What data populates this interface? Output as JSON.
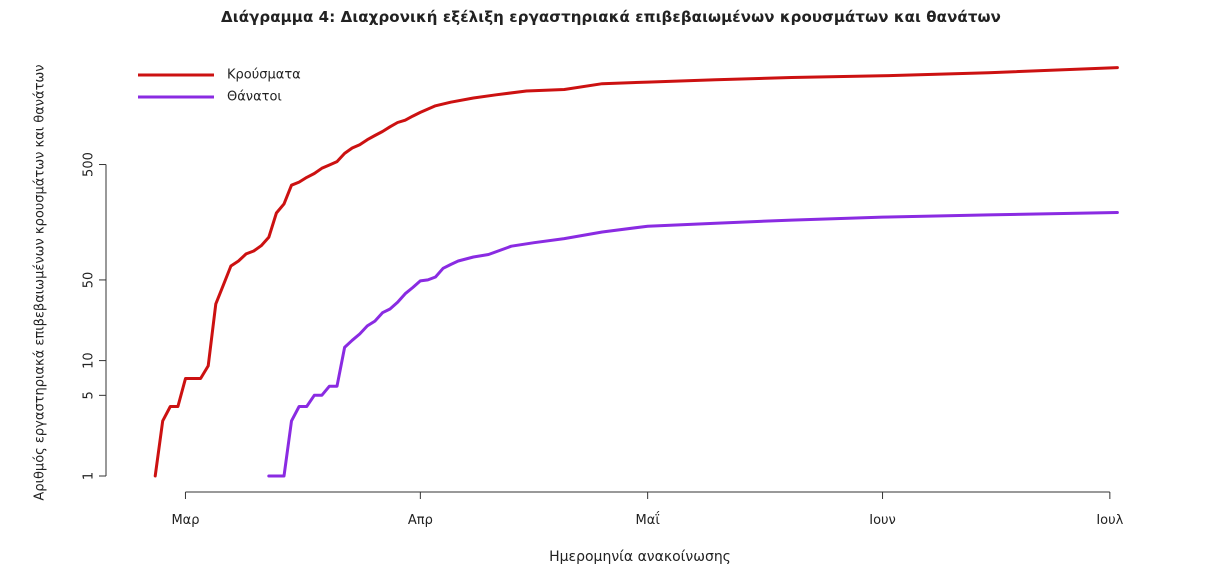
{
  "chart_data": {
    "type": "line",
    "title": "Διάγραμμα 4: Διαχρονική εξέλιξη εργαστηριακά επιβεβαιωμένων κρουσμάτων και θανάτων",
    "xlabel": "Ημερομηνία ανακοίνωσης",
    "ylabel": "Αριθμός εργαστηριακά επιβεβαιωμένων κρουσμάτων και θανάτων",
    "y_scale": "log",
    "yticks": [
      1,
      5,
      10,
      50,
      500
    ],
    "ytick_labels": [
      "1",
      "5",
      "10",
      "50",
      "500"
    ],
    "ylim": [
      1,
      3500
    ],
    "xlim": [
      "2020-02-24",
      "2020-07-03"
    ],
    "xticks": [
      "2020-03-01",
      "2020-04-01",
      "2020-05-01",
      "2020-06-01",
      "2020-07-01"
    ],
    "xtick_labels": [
      "Μαρ",
      "Απρ",
      "Μαΐ",
      "Ιουν",
      "Ιουλ"
    ],
    "legend_position": "top-left",
    "grid": false,
    "series": [
      {
        "name": "Κρούσματα",
        "color": "#cc1111",
        "points": [
          [
            "2020-02-26",
            1
          ],
          [
            "2020-02-27",
            3
          ],
          [
            "2020-02-28",
            4
          ],
          [
            "2020-02-29",
            4
          ],
          [
            "2020-03-01",
            7
          ],
          [
            "2020-03-02",
            7
          ],
          [
            "2020-03-03",
            7
          ],
          [
            "2020-03-04",
            9
          ],
          [
            "2020-03-05",
            31
          ],
          [
            "2020-03-06",
            45
          ],
          [
            "2020-03-07",
            66
          ],
          [
            "2020-03-08",
            73
          ],
          [
            "2020-03-09",
            84
          ],
          [
            "2020-03-10",
            89
          ],
          [
            "2020-03-11",
            99
          ],
          [
            "2020-03-12",
            117
          ],
          [
            "2020-03-13",
            190
          ],
          [
            "2020-03-14",
            228
          ],
          [
            "2020-03-15",
            331
          ],
          [
            "2020-03-16",
            352
          ],
          [
            "2020-03-17",
            387
          ],
          [
            "2020-03-18",
            418
          ],
          [
            "2020-03-19",
            464
          ],
          [
            "2020-03-20",
            495
          ],
          [
            "2020-03-21",
            530
          ],
          [
            "2020-03-22",
            624
          ],
          [
            "2020-03-23",
            695
          ],
          [
            "2020-03-24",
            743
          ],
          [
            "2020-03-25",
            821
          ],
          [
            "2020-03-26",
            892
          ],
          [
            "2020-03-27",
            966
          ],
          [
            "2020-03-28",
            1061
          ],
          [
            "2020-03-29",
            1156
          ],
          [
            "2020-03-30",
            1212
          ],
          [
            "2020-03-31",
            1314
          ],
          [
            "2020-04-01",
            1415
          ],
          [
            "2020-04-03",
            1613
          ],
          [
            "2020-04-05",
            1735
          ],
          [
            "2020-04-08",
            1884
          ],
          [
            "2020-04-11",
            2011
          ],
          [
            "2020-04-15",
            2170
          ],
          [
            "2020-04-20",
            2235
          ],
          [
            "2020-04-25",
            2506
          ],
          [
            "2020-05-01",
            2591
          ],
          [
            "2020-05-10",
            2710
          ],
          [
            "2020-05-20",
            2840
          ],
          [
            "2020-06-01",
            2937
          ],
          [
            "2020-06-15",
            3121
          ],
          [
            "2020-07-02",
            3458
          ]
        ]
      },
      {
        "name": "Θάνατοι",
        "color": "#8a2be2",
        "points": [
          [
            "2020-03-12",
            1
          ],
          [
            "2020-03-14",
            1
          ],
          [
            "2020-03-15",
            3
          ],
          [
            "2020-03-16",
            4
          ],
          [
            "2020-03-17",
            4
          ],
          [
            "2020-03-18",
            5
          ],
          [
            "2020-03-19",
            5
          ],
          [
            "2020-03-20",
            6
          ],
          [
            "2020-03-21",
            6
          ],
          [
            "2020-03-22",
            13
          ],
          [
            "2020-03-23",
            15
          ],
          [
            "2020-03-24",
            17
          ],
          [
            "2020-03-25",
            20
          ],
          [
            "2020-03-26",
            22
          ],
          [
            "2020-03-27",
            26
          ],
          [
            "2020-03-28",
            28
          ],
          [
            "2020-03-29",
            32
          ],
          [
            "2020-03-30",
            38
          ],
          [
            "2020-03-31",
            43
          ],
          [
            "2020-04-01",
            49
          ],
          [
            "2020-04-02",
            50
          ],
          [
            "2020-04-03",
            53
          ],
          [
            "2020-04-04",
            63
          ],
          [
            "2020-04-05",
            68
          ],
          [
            "2020-04-06",
            73
          ],
          [
            "2020-04-08",
            79
          ],
          [
            "2020-04-10",
            83
          ],
          [
            "2020-04-13",
            98
          ],
          [
            "2020-04-16",
            105
          ],
          [
            "2020-04-20",
            114
          ],
          [
            "2020-04-25",
            130
          ],
          [
            "2020-05-01",
            146
          ],
          [
            "2020-05-10",
            155
          ],
          [
            "2020-05-20",
            165
          ],
          [
            "2020-06-01",
            175
          ],
          [
            "2020-06-15",
            183
          ],
          [
            "2020-07-02",
            192
          ]
        ]
      }
    ]
  }
}
